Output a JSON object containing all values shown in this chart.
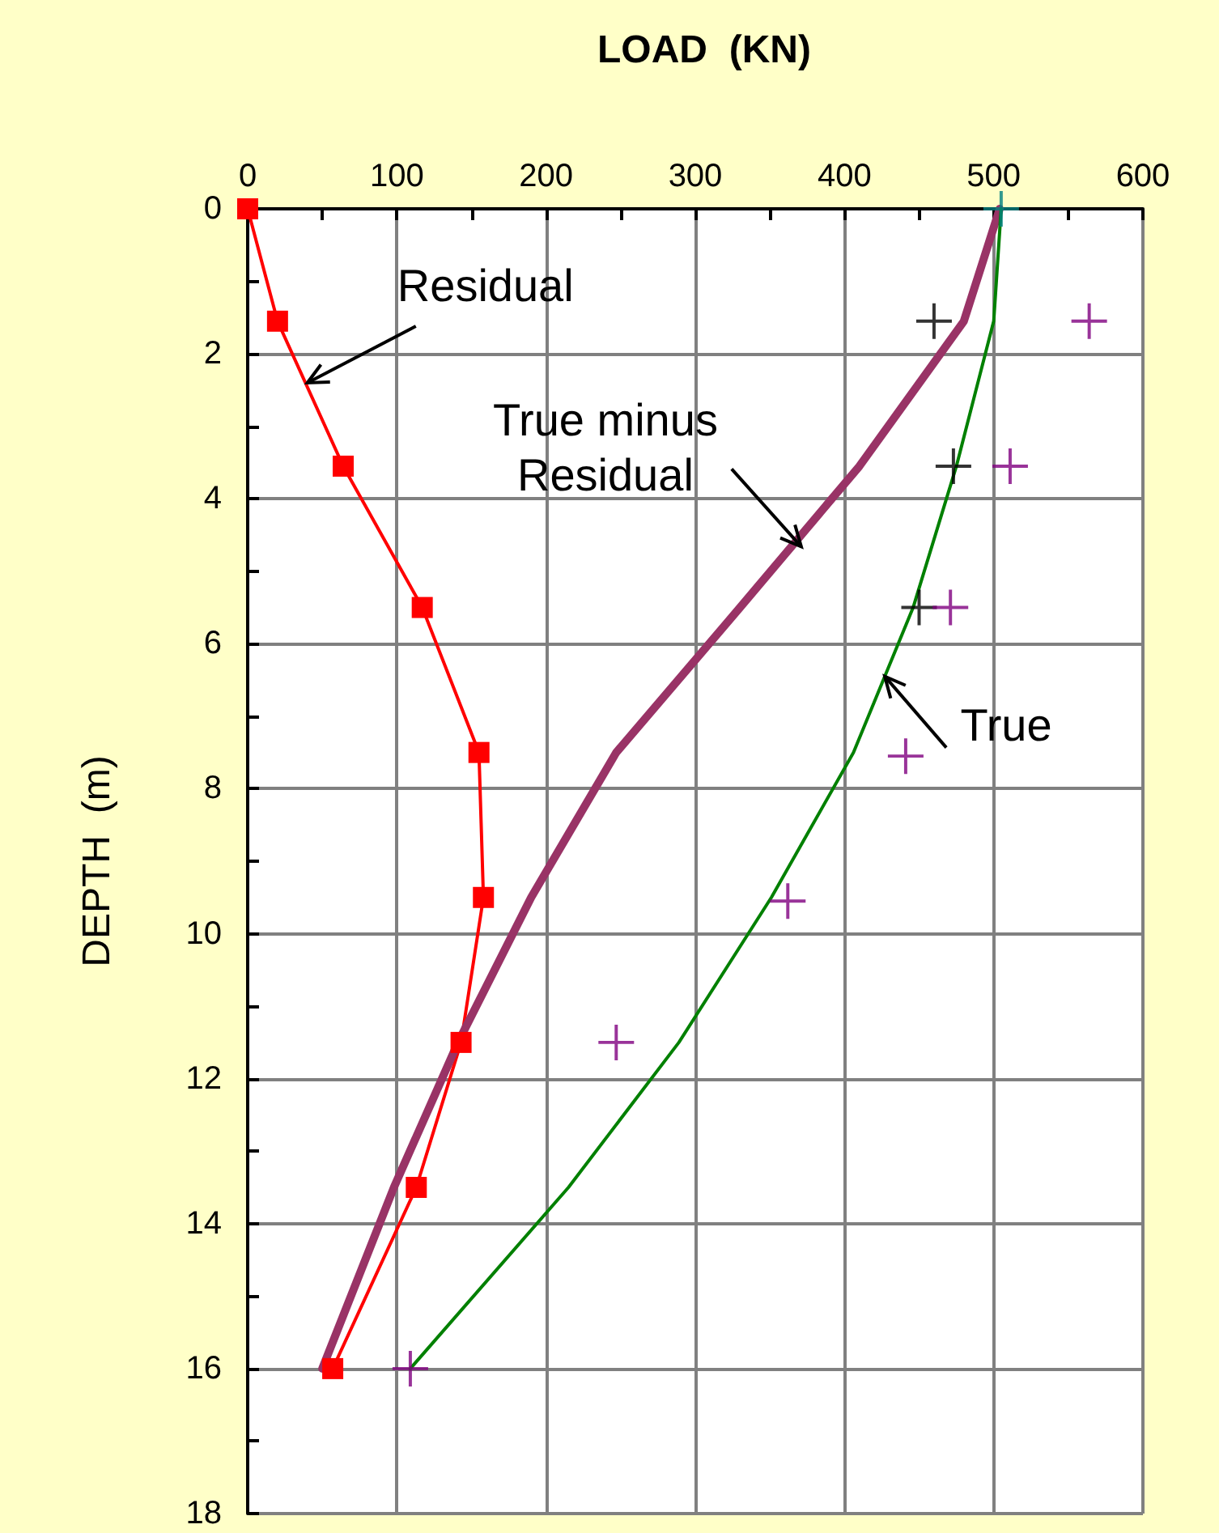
{
  "chart_data": {
    "type": "line",
    "title": "LOAD  (KN)",
    "ylabel": "DEPTH  (m)",
    "xlim": [
      0,
      600
    ],
    "xticks": [
      0,
      {
        "value": 50,
        "label": null
      },
      100,
      {
        "value": 150,
        "label": null
      },
      200,
      {
        "value": 250,
        "label": null
      },
      300,
      {
        "value": 350,
        "label": null
      },
      400,
      {
        "value": 450,
        "label": null
      },
      500,
      {
        "value": 550,
        "label": null
      },
      600
    ],
    "ylim": [
      18,
      0
    ],
    "yticks": [
      0,
      {
        "value": 1,
        "label": null
      },
      2,
      {
        "value": 3,
        "label": null
      },
      4,
      {
        "value": 5,
        "label": null
      },
      6,
      {
        "value": 7,
        "label": null
      },
      8,
      {
        "value": 9,
        "label": null
      },
      10,
      {
        "value": 11,
        "label": null
      },
      12,
      {
        "value": 13,
        "label": null
      },
      14,
      {
        "value": 15,
        "label": null
      },
      16,
      {
        "value": 17,
        "label": null
      },
      18
    ],
    "grid": true,
    "series": [
      {
        "color": "#ff0000",
        "marker": "square",
        "x": [
          0,
          20,
          64,
          117,
          155,
          158,
          143,
          113,
          57
        ],
        "values": [
          0,
          1.55,
          3.55,
          5.5,
          7.5,
          9.5,
          11.5,
          13.5,
          16
        ]
      },
      {
        "color": "#993366",
        "marker": "none",
        "x": [
          504,
          480,
          410,
          330,
          247,
          190,
          141,
          98,
          50
        ],
        "values": [
          0,
          1.55,
          3.55,
          5.5,
          7.5,
          9.5,
          11.5,
          13.5,
          16
        ]
      },
      {
        "color": "#008000",
        "marker": "none",
        "x": [
          505,
          500,
          475,
          446,
          406,
          351,
          289,
          215,
          109
        ],
        "values": [
          0,
          1.55,
          3.55,
          5.5,
          7.5,
          9.5,
          11.5,
          13.5,
          16
        ]
      },
      {
        "type": "scatter",
        "color": "#000000",
        "marker": "cross",
        "x": [
          460,
          473,
          450
        ],
        "values": [
          1.55,
          3.55,
          5.5
        ]
      },
      {
        "type": "scatter",
        "color": "#800080",
        "marker": "cross",
        "x": [
          564,
          511,
          471,
          441,
          362,
          247,
          109
        ],
        "values": [
          1.55,
          3.55,
          5.5,
          7.55,
          9.55,
          11.5,
          16
        ]
      },
      {
        "type": "scatter",
        "color": "#008080",
        "marker": "cross",
        "x": [
          505
        ],
        "values": [
          0
        ]
      }
    ],
    "annotations": [
      {
        "text": "Residual",
        "x": 40,
        "y": 2.4
      },
      {
        "text": "True minus\nResidual",
        "x": 371,
        "y": 4.66
      },
      {
        "text": "True",
        "x": 427,
        "y": 6.45
      }
    ]
  }
}
